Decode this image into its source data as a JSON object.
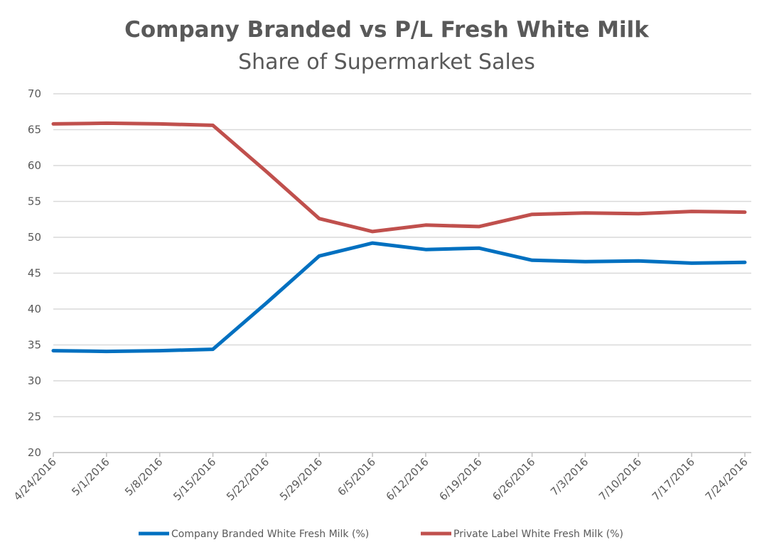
{
  "chart_data": {
    "type": "line",
    "title": "Company Branded vs P/L Fresh White Milk",
    "subtitle": "Share of Supermarket Sales",
    "xlabel": "",
    "ylabel": "",
    "categories": [
      "4/24/2016",
      "5/1/2016",
      "5/8/2016",
      "5/15/2016",
      "5/22/2016",
      "5/29/2016",
      "6/5/2016",
      "6/12/2016",
      "6/19/2016",
      "6/26/2016",
      "7/3/2016",
      "7/10/2016",
      "7/17/2016",
      "7/24/2016"
    ],
    "ylim": [
      20,
      70
    ],
    "yticks": [
      20,
      25,
      30,
      35,
      40,
      45,
      50,
      55,
      60,
      65,
      70
    ],
    "grid": true,
    "legend_position": "bottom",
    "series": [
      {
        "name": "Company Branded White Fresh Milk (%)",
        "color": "#0070c0",
        "values": [
          34.2,
          34.1,
          34.2,
          34.4,
          40.8,
          47.4,
          49.2,
          48.3,
          48.5,
          46.8,
          46.6,
          46.7,
          46.4,
          46.5
        ]
      },
      {
        "name": "Private Label White Fresh Milk (%)",
        "color": "#c0504d",
        "values": [
          65.8,
          65.9,
          65.8,
          65.6,
          59.2,
          52.6,
          50.8,
          51.7,
          51.5,
          53.2,
          53.4,
          53.3,
          53.6,
          53.5
        ]
      }
    ]
  }
}
